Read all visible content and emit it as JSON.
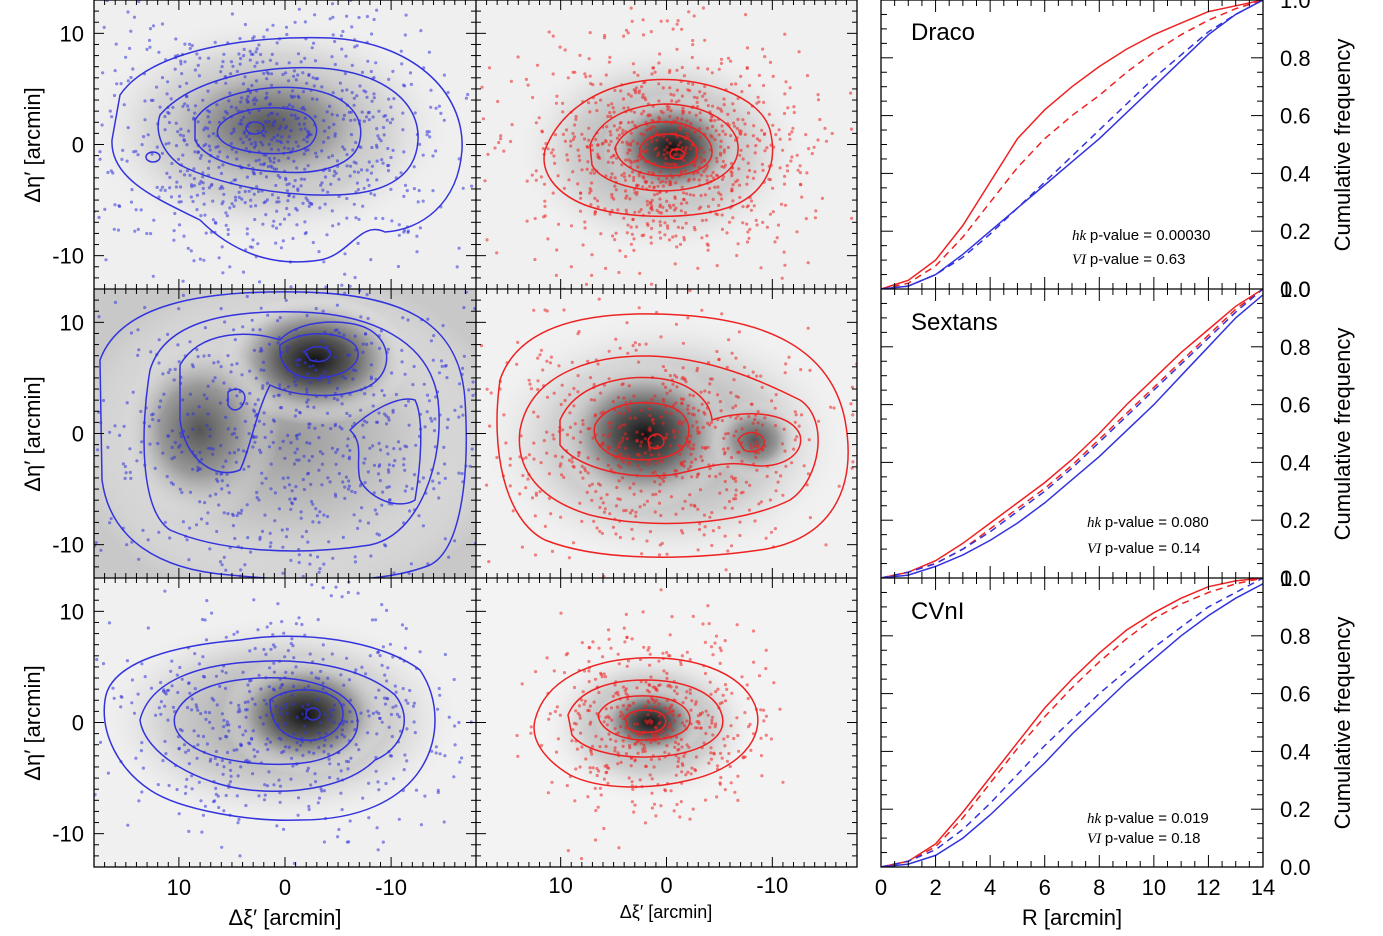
{
  "chart_data": [
    {
      "type": "scatter",
      "panel": "spatial-maps",
      "rows": [
        "Draco",
        "Sextans",
        "CVnI"
      ],
      "columns": [
        "blue",
        "red"
      ],
      "xlabel": "Δξ′ [arcmin]",
      "ylabel": "Δη′ [arcmin]",
      "xlim": [
        18,
        -18
      ],
      "ylim": [
        -13,
        13
      ],
      "xticks": [
        10,
        0,
        -10
      ],
      "yticks": [
        10,
        0,
        -10
      ],
      "colors": {
        "blue": "#3333dd",
        "red": "#ee2222"
      }
    },
    {
      "type": "line",
      "panel": "cumulative-distributions",
      "xlabel": "R [arcmin]",
      "ylabel": "Cumulative frequency",
      "xlim": [
        0,
        14
      ],
      "ylim": [
        0,
        1
      ],
      "xticks": [
        0,
        2,
        4,
        6,
        8,
        10,
        12,
        14
      ],
      "yticks": [
        0.0,
        0.2,
        0.4,
        0.6,
        0.8,
        1.0
      ],
      "galaxies": [
        {
          "name": "Draco",
          "hk_label": "hk",
          "hk_pvalue": "p-value = 0.00030",
          "vi_label": "VI",
          "vi_pvalue": "p-value = 0.63",
          "x": [
            0,
            1,
            2,
            3,
            4,
            5,
            6,
            7,
            8,
            9,
            10,
            11,
            12,
            13,
            14
          ],
          "series": [
            {
              "color": "red",
              "style": "solid",
              "values": [
                0,
                0.03,
                0.1,
                0.22,
                0.37,
                0.52,
                0.62,
                0.7,
                0.77,
                0.83,
                0.88,
                0.92,
                0.96,
                0.98,
                1.0
              ]
            },
            {
              "color": "red",
              "style": "dashed",
              "values": [
                0,
                0.02,
                0.08,
                0.18,
                0.3,
                0.42,
                0.52,
                0.6,
                0.67,
                0.75,
                0.82,
                0.88,
                0.93,
                0.97,
                1.0
              ]
            },
            {
              "color": "blue",
              "style": "solid",
              "values": [
                0,
                0.01,
                0.05,
                0.12,
                0.2,
                0.28,
                0.36,
                0.44,
                0.52,
                0.61,
                0.7,
                0.79,
                0.88,
                0.95,
                1.0
              ]
            },
            {
              "color": "blue",
              "style": "dashed",
              "values": [
                0,
                0.01,
                0.05,
                0.11,
                0.19,
                0.28,
                0.37,
                0.46,
                0.55,
                0.64,
                0.73,
                0.81,
                0.89,
                0.95,
                1.0
              ]
            }
          ]
        },
        {
          "name": "Sextans",
          "hk_label": "hk",
          "hk_pvalue": "p-value = 0.080",
          "vi_label": "VI",
          "vi_pvalue": "p-value = 0.14",
          "x": [
            0,
            1,
            2,
            3,
            4,
            5,
            6,
            7,
            8,
            9,
            10,
            11,
            12,
            13,
            14
          ],
          "series": [
            {
              "color": "red",
              "style": "solid",
              "values": [
                0,
                0.02,
                0.06,
                0.12,
                0.19,
                0.26,
                0.33,
                0.41,
                0.5,
                0.6,
                0.69,
                0.78,
                0.86,
                0.94,
                1.0
              ]
            },
            {
              "color": "red",
              "style": "dashed",
              "values": [
                0,
                0.02,
                0.05,
                0.1,
                0.17,
                0.24,
                0.31,
                0.39,
                0.48,
                0.57,
                0.66,
                0.75,
                0.84,
                0.93,
                1.0
              ]
            },
            {
              "color": "blue",
              "style": "solid",
              "values": [
                0,
                0.01,
                0.04,
                0.08,
                0.13,
                0.19,
                0.26,
                0.34,
                0.42,
                0.51,
                0.6,
                0.7,
                0.8,
                0.9,
                0.98
              ]
            },
            {
              "color": "blue",
              "style": "dashed",
              "values": [
                0,
                0.02,
                0.05,
                0.1,
                0.16,
                0.23,
                0.3,
                0.38,
                0.47,
                0.56,
                0.65,
                0.74,
                0.83,
                0.92,
                1.0
              ]
            }
          ]
        },
        {
          "name": "CVnI",
          "hk_label": "hk",
          "hk_pvalue": "p-value = 0.019",
          "vi_label": "VI",
          "vi_pvalue": "p-value = 0.18",
          "x": [
            0,
            1,
            2,
            3,
            4,
            5,
            6,
            7,
            8,
            9,
            10,
            11,
            12,
            13,
            14
          ],
          "series": [
            {
              "color": "red",
              "style": "solid",
              "values": [
                0,
                0.02,
                0.08,
                0.19,
                0.31,
                0.43,
                0.55,
                0.65,
                0.74,
                0.82,
                0.88,
                0.93,
                0.97,
                0.99,
                1.0
              ]
            },
            {
              "color": "red",
              "style": "dashed",
              "values": [
                0,
                0.02,
                0.07,
                0.17,
                0.29,
                0.41,
                0.52,
                0.62,
                0.71,
                0.79,
                0.86,
                0.91,
                0.95,
                0.98,
                1.0
              ]
            },
            {
              "color": "blue",
              "style": "solid",
              "values": [
                0,
                0.01,
                0.04,
                0.1,
                0.18,
                0.27,
                0.36,
                0.46,
                0.55,
                0.64,
                0.72,
                0.8,
                0.87,
                0.93,
                0.98
              ]
            },
            {
              "color": "blue",
              "style": "dashed",
              "values": [
                0,
                0.02,
                0.06,
                0.13,
                0.22,
                0.32,
                0.42,
                0.51,
                0.6,
                0.68,
                0.76,
                0.83,
                0.9,
                0.95,
                1.0
              ]
            }
          ]
        }
      ]
    }
  ]
}
